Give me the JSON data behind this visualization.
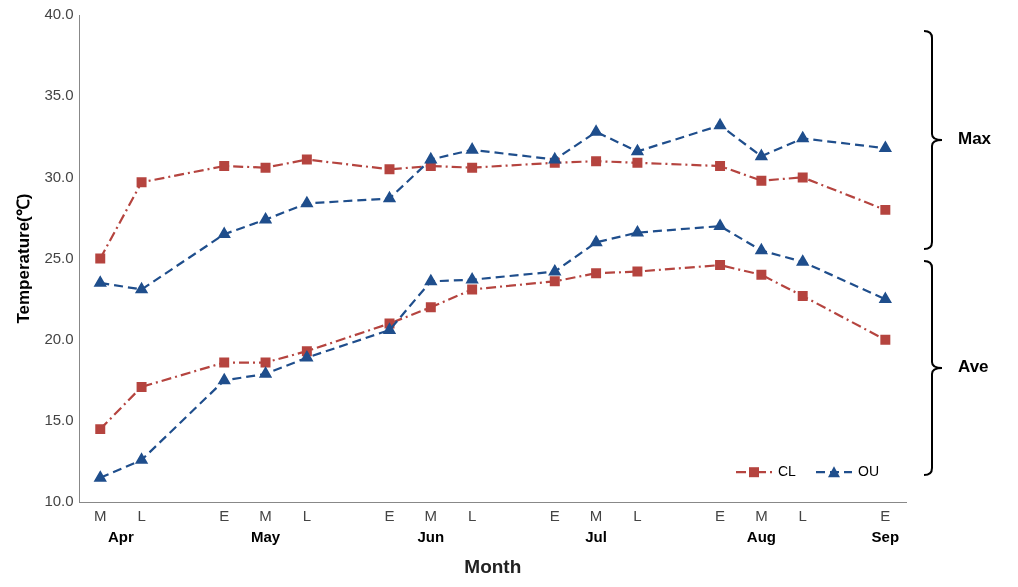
{
  "chart_data": {
    "type": "line",
    "xlabel": "Month",
    "ylabel": "Temperature(℃)",
    "categories": [
      "M",
      "L",
      null,
      "E",
      "M",
      "L",
      null,
      "E",
      "M",
      "L",
      null,
      "E",
      "M",
      "L",
      null,
      "E",
      "M",
      "L",
      null,
      "E"
    ],
    "series": [
      {
        "name": "CL",
        "color": "#b5443f",
        "marker": "square",
        "line_style": "dashdot",
        "values": [
          25.0,
          29.7,
          null,
          30.7,
          30.6,
          31.1,
          null,
          30.5,
          30.7,
          30.6,
          null,
          30.9,
          31.0,
          30.9,
          null,
          30.7,
          29.8,
          30.0,
          null,
          28.0
        ]
      },
      {
        "name": "OU",
        "color": "#1f4e8c",
        "marker": "triangle",
        "line_style": "dashed",
        "values": [
          23.5,
          23.1,
          null,
          26.5,
          27.4,
          28.4,
          null,
          28.7,
          31.1,
          31.7,
          null,
          31.1,
          32.8,
          31.6,
          null,
          33.2,
          31.3,
          32.4,
          null,
          31.8
        ]
      },
      {
        "color": "#b5443f",
        "marker": "square",
        "line_style": "dashdot",
        "values": [
          14.5,
          17.1,
          null,
          18.6,
          18.6,
          19.3,
          null,
          21.0,
          22.0,
          23.1,
          null,
          23.6,
          24.1,
          24.2,
          null,
          24.6,
          24.0,
          22.7,
          null,
          20.0
        ]
      },
      {
        "color": "#1f4e8c",
        "marker": "triangle",
        "line_style": "dashed",
        "values": [
          11.5,
          12.6,
          null,
          17.5,
          17.9,
          18.9,
          null,
          20.6,
          23.6,
          23.7,
          null,
          24.2,
          26.0,
          26.6,
          null,
          27.0,
          25.5,
          24.8,
          null,
          22.5
        ]
      }
    ],
    "ylim": [
      10,
      40
    ],
    "yticks": [
      {
        "value": 10,
        "label": "10.0"
      },
      {
        "value": 15,
        "label": "15.0"
      },
      {
        "value": 20,
        "label": "20.0"
      },
      {
        "value": 25,
        "label": "25.0"
      },
      {
        "value": 30,
        "label": "30.0"
      },
      {
        "value": 35,
        "label": "35.0"
      },
      {
        "value": 40,
        "label": "40.0"
      }
    ],
    "grid": false,
    "legend": "bottom right",
    "annotations": [
      "Apr",
      "May",
      "Jun",
      "Jul",
      "Aug",
      "Sep",
      "Max",
      "Ave"
    ]
  }
}
